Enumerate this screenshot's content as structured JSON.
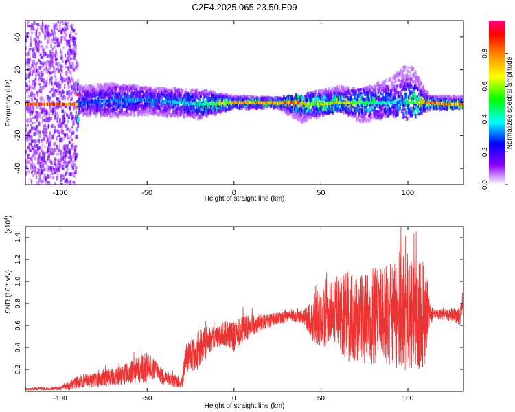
{
  "title": "C2E4.2025.065.23.50.E09",
  "chart_data": [
    {
      "type": "heatmap",
      "xlabel": "Height of straight line (km)",
      "ylabel": "Frequency (Hz)",
      "xlim": [
        -120,
        132
      ],
      "ylim": [
        -50,
        50
      ],
      "xticks": [
        -100,
        -50,
        0,
        50,
        100
      ],
      "yticks": [
        -40,
        -20,
        0,
        20,
        40
      ],
      "colorbar": {
        "label": "Normalized spectral amplitude",
        "range": [
          0,
          1
        ],
        "ticks": [
          "0.0",
          "0.2",
          "0.4",
          "0.6",
          "0.8"
        ],
        "colormap": [
          "#ffffff",
          "#8b00ff",
          "#0000ff",
          "#00ffff",
          "#00ff00",
          "#ffff00",
          "#ff8000",
          "#ff0000",
          "#ff0080"
        ]
      },
      "band": [
        {
          "x": -120,
          "lo": -50,
          "hi": 50
        },
        {
          "x": -92,
          "lo": -50,
          "hi": 50
        },
        {
          "x": -90,
          "lo": -8,
          "hi": 10
        },
        {
          "x": -70,
          "lo": -8,
          "hi": 12
        },
        {
          "x": -50,
          "lo": -7,
          "hi": 9
        },
        {
          "x": -20,
          "lo": -10,
          "hi": 8
        },
        {
          "x": 0,
          "lo": -3,
          "hi": 4
        },
        {
          "x": 25,
          "lo": -3,
          "hi": 3
        },
        {
          "x": 38,
          "lo": -12,
          "hi": 5
        },
        {
          "x": 60,
          "lo": -5,
          "hi": 10
        },
        {
          "x": 72,
          "lo": -12,
          "hi": 8
        },
        {
          "x": 90,
          "lo": -8,
          "hi": 15
        },
        {
          "x": 100,
          "lo": -10,
          "hi": 25
        },
        {
          "x": 112,
          "lo": -4,
          "hi": 4
        },
        {
          "x": 132,
          "lo": -3,
          "hi": 4
        }
      ],
      "ridge": [
        {
          "x": -90,
          "y": 0,
          "amp": 0.3
        },
        {
          "x": -60,
          "y": 2,
          "amp": 0.35
        },
        {
          "x": -40,
          "y": 1,
          "amp": 0.35
        },
        {
          "x": -20,
          "y": -1,
          "amp": 0.45
        },
        {
          "x": 0,
          "y": 0,
          "amp": 0.8
        },
        {
          "x": 20,
          "y": 0,
          "amp": 0.8
        },
        {
          "x": 35,
          "y": 0,
          "amp": 0.85
        },
        {
          "x": 45,
          "y": -1,
          "amp": 0.6
        },
        {
          "x": 60,
          "y": 0,
          "amp": 0.7
        },
        {
          "x": 75,
          "y": 0,
          "amp": 0.55
        },
        {
          "x": 95,
          "y": 0,
          "amp": 0.35
        },
        {
          "x": 112,
          "y": 0,
          "amp": 0.9
        },
        {
          "x": 125,
          "y": -1,
          "amp": 0.9
        }
      ]
    },
    {
      "type": "line",
      "xlabel": "Height of straight line (km)",
      "ylabel": "SNR (10 * v/v)",
      "y_multiplier": "(x10^4)",
      "xlim": [
        -120,
        132
      ],
      "ylim": [
        0,
        1.5
      ],
      "xticks": [
        -100,
        -50,
        0,
        50,
        100
      ],
      "yticks": [
        "0.2",
        "0.4",
        "0.6",
        "0.8",
        "1.0",
        "1.2",
        "1.4"
      ],
      "color": "#ee3333",
      "series": [
        {
          "x": [
            -120,
            -100,
            -95,
            -90,
            -80,
            -70,
            -60,
            -50,
            -45,
            -40,
            -30,
            -28,
            -20,
            -18,
            -15,
            -10,
            -5,
            0,
            5,
            10,
            15,
            20,
            25,
            30,
            35,
            40,
            45,
            50,
            55,
            60,
            65,
            70,
            75,
            80,
            85,
            90,
            95,
            100,
            105,
            110,
            112,
            115,
            120,
            125,
            130,
            132
          ],
          "base": [
            0.02,
            0.03,
            0.05,
            0.09,
            0.1,
            0.13,
            0.17,
            0.22,
            0.2,
            0.12,
            0.08,
            0.3,
            0.38,
            0.42,
            0.46,
            0.5,
            0.52,
            0.5,
            0.56,
            0.6,
            0.62,
            0.64,
            0.66,
            0.68,
            0.68,
            0.68,
            0.66,
            0.68,
            0.7,
            0.72,
            0.68,
            0.66,
            0.68,
            0.68,
            0.7,
            0.72,
            0.74,
            0.72,
            0.7,
            0.68,
            0.72,
            0.7,
            0.7,
            0.7,
            0.68,
            0.85
          ],
          "amp": [
            0.01,
            0.02,
            0.04,
            0.06,
            0.07,
            0.08,
            0.1,
            0.14,
            0.08,
            0.07,
            0.05,
            0.14,
            0.18,
            0.2,
            0.12,
            0.1,
            0.12,
            0.14,
            0.12,
            0.1,
            0.08,
            0.06,
            0.06,
            0.05,
            0.05,
            0.06,
            0.2,
            0.28,
            0.3,
            0.34,
            0.42,
            0.38,
            0.42,
            0.45,
            0.42,
            0.48,
            0.55,
            0.55,
            0.5,
            0.5,
            0.15,
            0.04,
            0.05,
            0.06,
            0.08,
            0.12
          ]
        }
      ]
    }
  ]
}
